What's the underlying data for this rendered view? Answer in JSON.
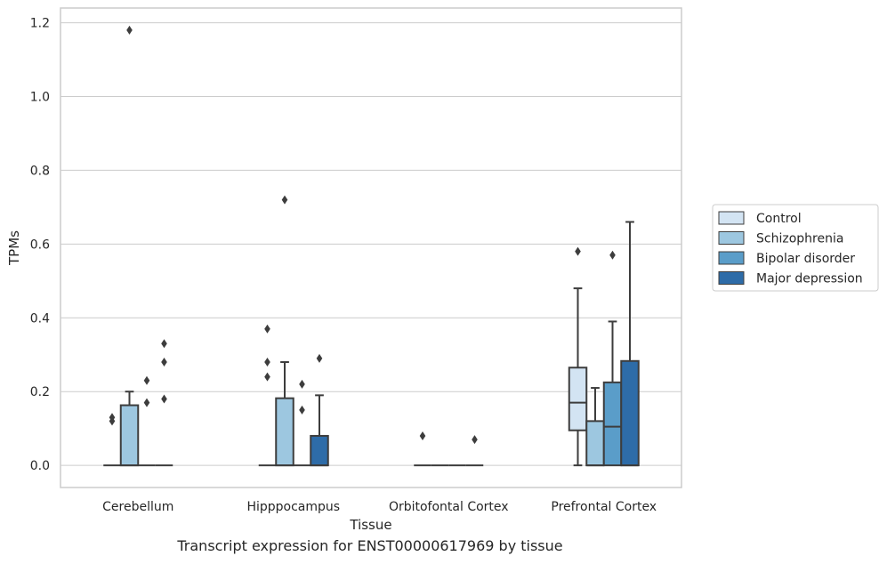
{
  "caption": "Transcript expression for ENST00000617969 by tissue",
  "chart_data": {
    "type": "box",
    "xlabel": "Tissue",
    "ylabel": "TPMs",
    "ylim": [
      -0.06,
      1.24
    ],
    "yticks": [
      0.0,
      0.2,
      0.4,
      0.6,
      0.8,
      1.0,
      1.2
    ],
    "ytick_labels": [
      "0.0",
      "0.2",
      "0.4",
      "0.6",
      "0.8",
      "1.0",
      "1.2"
    ],
    "grid": "horizontal",
    "categories": [
      "Cerebellum",
      "Hipppocampus",
      "Orbitofontal Cortex",
      "Prefrontal Cortex"
    ],
    "legend": {
      "placement": "center-right outside"
    },
    "series": [
      {
        "name": "Control",
        "color": "#d3e4f3",
        "boxes": [
          {
            "min": 0,
            "q1": 0,
            "median": 0,
            "q3": 0,
            "max": 0,
            "outliers": [
              0.12,
              0.13
            ]
          },
          {
            "min": 0,
            "q1": 0,
            "median": 0,
            "q3": 0,
            "max": 0,
            "outliers": [
              0.24,
              0.28,
              0.37
            ]
          },
          {
            "min": 0,
            "q1": 0,
            "median": 0,
            "q3": 0,
            "max": 0,
            "outliers": [
              0.08
            ]
          },
          {
            "min": 0,
            "q1": 0.095,
            "median": 0.17,
            "q3": 0.265,
            "max": 0.48,
            "outliers": [
              0.58
            ]
          }
        ]
      },
      {
        "name": "Schizophrenia",
        "color": "#9dc7e0",
        "boxes": [
          {
            "min": 0,
            "q1": 0,
            "median": 0,
            "q3": 0.163,
            "max": 0.2,
            "outliers": [
              1.18
            ]
          },
          {
            "min": 0,
            "q1": 0,
            "median": 0,
            "q3": 0.182,
            "max": 0.28,
            "outliers": [
              0.72
            ]
          },
          {
            "min": 0,
            "q1": 0,
            "median": 0,
            "q3": 0,
            "max": 0,
            "outliers": []
          },
          {
            "min": 0,
            "q1": 0,
            "median": 0,
            "q3": 0.12,
            "max": 0.21,
            "outliers": []
          }
        ]
      },
      {
        "name": "Bipolar disorder",
        "color": "#5a9dc9",
        "boxes": [
          {
            "min": 0,
            "q1": 0,
            "median": 0,
            "q3": 0,
            "max": 0,
            "outliers": [
              0.17,
              0.23
            ]
          },
          {
            "min": 0,
            "q1": 0,
            "median": 0,
            "q3": 0,
            "max": 0,
            "outliers": [
              0.15,
              0.22
            ]
          },
          {
            "min": 0,
            "q1": 0,
            "median": 0,
            "q3": 0,
            "max": 0,
            "outliers": []
          },
          {
            "min": 0,
            "q1": 0,
            "median": 0.105,
            "q3": 0.225,
            "max": 0.39,
            "outliers": [
              0.57
            ]
          }
        ]
      },
      {
        "name": "Major depression",
        "color": "#2e6ca8",
        "boxes": [
          {
            "min": 0,
            "q1": 0,
            "median": 0,
            "q3": 0,
            "max": 0,
            "outliers": [
              0.18,
              0.28,
              0.33
            ]
          },
          {
            "min": 0,
            "q1": 0,
            "median": 0,
            "q3": 0.08,
            "max": 0.19,
            "outliers": [
              0.29
            ]
          },
          {
            "min": 0,
            "q1": 0,
            "median": 0,
            "q3": 0,
            "max": 0,
            "outliers": [
              0.07
            ]
          },
          {
            "min": 0,
            "q1": 0,
            "median": 0,
            "q3": 0.283,
            "max": 0.66,
            "outliers": []
          }
        ]
      }
    ]
  }
}
